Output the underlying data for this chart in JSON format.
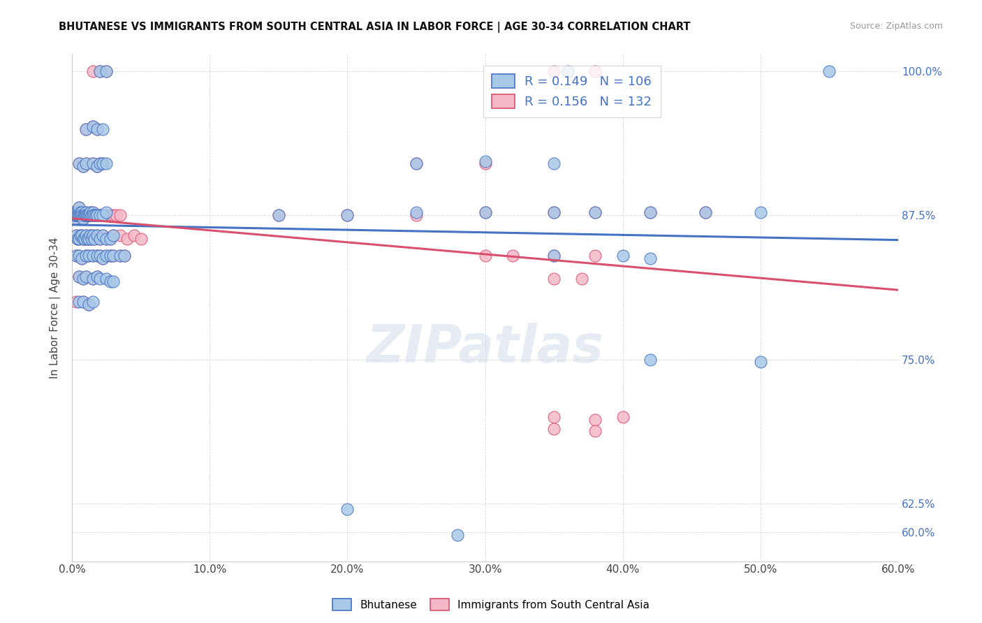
{
  "title": "BHUTANESE VS IMMIGRANTS FROM SOUTH CENTRAL ASIA IN LABOR FORCE | AGE 30-34 CORRELATION CHART",
  "source": "Source: ZipAtlas.com",
  "xlabel_ticks": [
    "0.0%",
    "10.0%",
    "20.0%",
    "30.0%",
    "40.0%",
    "50.0%",
    "60.0%"
  ],
  "ylabel_label": "In Labor Force | Age 30-34",
  "xmin": 0.0,
  "xmax": 0.6,
  "ymin": 0.575,
  "ymax": 1.015,
  "blue_R": 0.149,
  "blue_N": 106,
  "pink_R": 0.156,
  "pink_N": 132,
  "blue_color": "#a8c8e8",
  "pink_color": "#f4b8c8",
  "blue_line_color": "#4472c4",
  "pink_line_color": "#d94f6e",
  "legend_label_blue": "Bhutanese",
  "legend_label_pink": "Immigrants from South Central Asia",
  "watermark": "ZIPatlas",
  "blue_scatter": [
    [
      0.001,
      0.875
    ],
    [
      0.001,
      0.878
    ],
    [
      0.002,
      0.875
    ],
    [
      0.002,
      0.872
    ],
    [
      0.002,
      0.875
    ],
    [
      0.003,
      0.875
    ],
    [
      0.003,
      0.878
    ],
    [
      0.003,
      0.875
    ],
    [
      0.004,
      0.875
    ],
    [
      0.004,
      0.878
    ],
    [
      0.004,
      0.875
    ],
    [
      0.005,
      0.875
    ],
    [
      0.005,
      0.878
    ],
    [
      0.005,
      0.882
    ],
    [
      0.005,
      0.875
    ],
    [
      0.006,
      0.875
    ],
    [
      0.006,
      0.878
    ],
    [
      0.006,
      0.875
    ],
    [
      0.007,
      0.875
    ],
    [
      0.007,
      0.878
    ],
    [
      0.007,
      0.875
    ],
    [
      0.008,
      0.875
    ],
    [
      0.008,
      0.872
    ],
    [
      0.009,
      0.875
    ],
    [
      0.009,
      0.875
    ],
    [
      0.01,
      0.875
    ],
    [
      0.01,
      0.878
    ],
    [
      0.01,
      0.875
    ],
    [
      0.011,
      0.875
    ],
    [
      0.011,
      0.875
    ],
    [
      0.012,
      0.875
    ],
    [
      0.012,
      0.875
    ],
    [
      0.013,
      0.875
    ],
    [
      0.013,
      0.878
    ],
    [
      0.014,
      0.875
    ],
    [
      0.015,
      0.878
    ],
    [
      0.015,
      0.875
    ],
    [
      0.016,
      0.875
    ],
    [
      0.017,
      0.875
    ],
    [
      0.018,
      0.875
    ],
    [
      0.02,
      0.875
    ],
    [
      0.022,
      0.875
    ],
    [
      0.025,
      0.878
    ],
    [
      0.003,
      0.858
    ],
    [
      0.004,
      0.855
    ],
    [
      0.005,
      0.855
    ],
    [
      0.006,
      0.858
    ],
    [
      0.007,
      0.858
    ],
    [
      0.008,
      0.855
    ],
    [
      0.009,
      0.855
    ],
    [
      0.01,
      0.858
    ],
    [
      0.011,
      0.855
    ],
    [
      0.012,
      0.855
    ],
    [
      0.013,
      0.858
    ],
    [
      0.014,
      0.855
    ],
    [
      0.015,
      0.858
    ],
    [
      0.016,
      0.855
    ],
    [
      0.018,
      0.858
    ],
    [
      0.02,
      0.855
    ],
    [
      0.022,
      0.858
    ],
    [
      0.025,
      0.855
    ],
    [
      0.028,
      0.855
    ],
    [
      0.03,
      0.858
    ],
    [
      0.003,
      0.84
    ],
    [
      0.005,
      0.84
    ],
    [
      0.007,
      0.838
    ],
    [
      0.01,
      0.84
    ],
    [
      0.012,
      0.84
    ],
    [
      0.015,
      0.84
    ],
    [
      0.018,
      0.84
    ],
    [
      0.02,
      0.84
    ],
    [
      0.022,
      0.838
    ],
    [
      0.025,
      0.84
    ],
    [
      0.028,
      0.84
    ],
    [
      0.03,
      0.84
    ],
    [
      0.035,
      0.84
    ],
    [
      0.038,
      0.84
    ],
    [
      0.005,
      0.822
    ],
    [
      0.008,
      0.82
    ],
    [
      0.01,
      0.822
    ],
    [
      0.015,
      0.82
    ],
    [
      0.018,
      0.822
    ],
    [
      0.02,
      0.82
    ],
    [
      0.025,
      0.82
    ],
    [
      0.028,
      0.818
    ],
    [
      0.03,
      0.818
    ],
    [
      0.005,
      0.8
    ],
    [
      0.008,
      0.8
    ],
    [
      0.012,
      0.798
    ],
    [
      0.015,
      0.8
    ],
    [
      0.005,
      0.92
    ],
    [
      0.008,
      0.918
    ],
    [
      0.01,
      0.92
    ],
    [
      0.015,
      0.92
    ],
    [
      0.018,
      0.918
    ],
    [
      0.02,
      0.92
    ],
    [
      0.022,
      0.92
    ],
    [
      0.025,
      0.92
    ],
    [
      0.01,
      0.95
    ],
    [
      0.015,
      0.952
    ],
    [
      0.018,
      0.95
    ],
    [
      0.022,
      0.95
    ],
    [
      0.02,
      1.0
    ],
    [
      0.025,
      1.0
    ],
    [
      0.36,
      1.0
    ],
    [
      0.55,
      1.0
    ],
    [
      0.15,
      0.875
    ],
    [
      0.2,
      0.875
    ],
    [
      0.25,
      0.878
    ],
    [
      0.3,
      0.878
    ],
    [
      0.35,
      0.878
    ],
    [
      0.38,
      0.878
    ],
    [
      0.42,
      0.878
    ],
    [
      0.46,
      0.878
    ],
    [
      0.5,
      0.878
    ],
    [
      0.25,
      0.92
    ],
    [
      0.3,
      0.922
    ],
    [
      0.35,
      0.92
    ],
    [
      0.35,
      0.84
    ],
    [
      0.4,
      0.84
    ],
    [
      0.42,
      0.838
    ],
    [
      0.42,
      0.75
    ],
    [
      0.5,
      0.748
    ],
    [
      0.2,
      0.62
    ],
    [
      0.28,
      0.598
    ]
  ],
  "pink_scatter": [
    [
      0.001,
      0.875
    ],
    [
      0.001,
      0.878
    ],
    [
      0.002,
      0.875
    ],
    [
      0.002,
      0.872
    ],
    [
      0.002,
      0.875
    ],
    [
      0.003,
      0.875
    ],
    [
      0.003,
      0.878
    ],
    [
      0.003,
      0.875
    ],
    [
      0.004,
      0.875
    ],
    [
      0.004,
      0.878
    ],
    [
      0.004,
      0.875
    ],
    [
      0.005,
      0.875
    ],
    [
      0.005,
      0.878
    ],
    [
      0.005,
      0.882
    ],
    [
      0.005,
      0.875
    ],
    [
      0.006,
      0.875
    ],
    [
      0.006,
      0.878
    ],
    [
      0.006,
      0.875
    ],
    [
      0.007,
      0.875
    ],
    [
      0.007,
      0.878
    ],
    [
      0.007,
      0.875
    ],
    [
      0.008,
      0.875
    ],
    [
      0.008,
      0.872
    ],
    [
      0.009,
      0.875
    ],
    [
      0.009,
      0.875
    ],
    [
      0.01,
      0.875
    ],
    [
      0.01,
      0.878
    ],
    [
      0.01,
      0.875
    ],
    [
      0.011,
      0.875
    ],
    [
      0.011,
      0.875
    ],
    [
      0.012,
      0.875
    ],
    [
      0.012,
      0.875
    ],
    [
      0.013,
      0.875
    ],
    [
      0.013,
      0.878
    ],
    [
      0.014,
      0.875
    ],
    [
      0.015,
      0.878
    ],
    [
      0.015,
      0.875
    ],
    [
      0.016,
      0.875
    ],
    [
      0.017,
      0.875
    ],
    [
      0.018,
      0.875
    ],
    [
      0.019,
      0.875
    ],
    [
      0.02,
      0.875
    ],
    [
      0.022,
      0.875
    ],
    [
      0.025,
      0.875
    ],
    [
      0.028,
      0.875
    ],
    [
      0.03,
      0.875
    ],
    [
      0.032,
      0.875
    ],
    [
      0.035,
      0.875
    ],
    [
      0.003,
      0.858
    ],
    [
      0.004,
      0.855
    ],
    [
      0.005,
      0.855
    ],
    [
      0.006,
      0.858
    ],
    [
      0.007,
      0.858
    ],
    [
      0.008,
      0.855
    ],
    [
      0.009,
      0.855
    ],
    [
      0.01,
      0.858
    ],
    [
      0.011,
      0.855
    ],
    [
      0.012,
      0.855
    ],
    [
      0.013,
      0.858
    ],
    [
      0.014,
      0.855
    ],
    [
      0.015,
      0.858
    ],
    [
      0.016,
      0.855
    ],
    [
      0.018,
      0.858
    ],
    [
      0.02,
      0.855
    ],
    [
      0.022,
      0.858
    ],
    [
      0.025,
      0.855
    ],
    [
      0.028,
      0.855
    ],
    [
      0.03,
      0.858
    ],
    [
      0.035,
      0.858
    ],
    [
      0.04,
      0.855
    ],
    [
      0.045,
      0.858
    ],
    [
      0.05,
      0.855
    ],
    [
      0.003,
      0.84
    ],
    [
      0.005,
      0.84
    ],
    [
      0.007,
      0.838
    ],
    [
      0.01,
      0.84
    ],
    [
      0.012,
      0.84
    ],
    [
      0.015,
      0.84
    ],
    [
      0.018,
      0.84
    ],
    [
      0.02,
      0.84
    ],
    [
      0.022,
      0.838
    ],
    [
      0.025,
      0.84
    ],
    [
      0.028,
      0.84
    ],
    [
      0.03,
      0.84
    ],
    [
      0.035,
      0.84
    ],
    [
      0.038,
      0.84
    ],
    [
      0.005,
      0.822
    ],
    [
      0.008,
      0.82
    ],
    [
      0.01,
      0.822
    ],
    [
      0.015,
      0.82
    ],
    [
      0.018,
      0.822
    ],
    [
      0.003,
      0.8
    ],
    [
      0.008,
      0.8
    ],
    [
      0.012,
      0.798
    ],
    [
      0.005,
      0.92
    ],
    [
      0.008,
      0.918
    ],
    [
      0.01,
      0.92
    ],
    [
      0.015,
      0.92
    ],
    [
      0.018,
      0.918
    ],
    [
      0.02,
      0.92
    ],
    [
      0.022,
      0.92
    ],
    [
      0.01,
      0.95
    ],
    [
      0.015,
      0.952
    ],
    [
      0.018,
      0.95
    ],
    [
      0.015,
      1.0
    ],
    [
      0.02,
      1.0
    ],
    [
      0.025,
      1.0
    ],
    [
      0.35,
      1.0
    ],
    [
      0.38,
      1.0
    ],
    [
      0.15,
      0.875
    ],
    [
      0.2,
      0.875
    ],
    [
      0.25,
      0.875
    ],
    [
      0.3,
      0.878
    ],
    [
      0.35,
      0.878
    ],
    [
      0.38,
      0.878
    ],
    [
      0.42,
      0.878
    ],
    [
      0.46,
      0.878
    ],
    [
      0.25,
      0.92
    ],
    [
      0.3,
      0.92
    ],
    [
      0.3,
      0.84
    ],
    [
      0.32,
      0.84
    ],
    [
      0.35,
      0.84
    ],
    [
      0.38,
      0.84
    ],
    [
      0.35,
      0.82
    ],
    [
      0.37,
      0.82
    ],
    [
      0.35,
      0.7
    ],
    [
      0.38,
      0.698
    ],
    [
      0.4,
      0.7
    ],
    [
      0.35,
      0.69
    ],
    [
      0.38,
      0.688
    ]
  ]
}
